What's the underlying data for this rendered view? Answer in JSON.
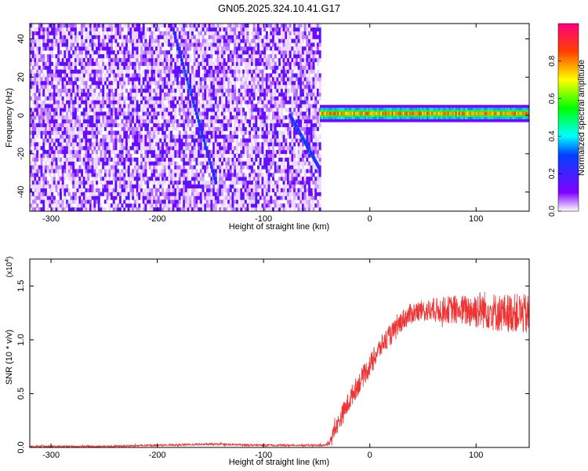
{
  "title": "GN05.2025.324.10.41.G17",
  "chart_data": [
    {
      "type": "heatmap",
      "xlabel": "Height of straight line (km)",
      "ylabel": "Frequency (Hz)",
      "xlim": [
        -320,
        150
      ],
      "ylim": [
        -50,
        48
      ],
      "x_ticks": [
        -300,
        -200,
        -100,
        0,
        100
      ],
      "y_ticks": [
        -40,
        -20,
        0,
        20,
        40
      ],
      "colorbar": {
        "label": "Normalized spectral amplitude",
        "range": [
          0,
          1
        ],
        "ticks": [
          0.0,
          0.2,
          0.4,
          0.6,
          0.8
        ],
        "tick_labels": [
          "0.0",
          "0.2",
          "0.4",
          "0.6",
          "0.8"
        ]
      },
      "features": {
        "noise_region_x": [
          -320,
          -47
        ],
        "tone_region_x": [
          -47,
          150
        ],
        "tone_frequency_hz": 1,
        "tone_peak_amplitude": 0.85,
        "diagonal_track_1": {
          "x": [
            -185,
            -145
          ],
          "y": [
            45,
            -35
          ],
          "amplitude": 0.3
        },
        "diagonal_track_2": {
          "x": [
            -75,
            -48
          ],
          "y": [
            0,
            -27
          ],
          "amplitude": 0.3
        }
      }
    },
    {
      "type": "line",
      "xlabel": "Height of straight line (km)",
      "ylabel": "SNR (10 * v/v)",
      "scale_label": "(x10",
      "scale_exponent": "4",
      "scale_suffix": ")",
      "xlim": [
        -320,
        150
      ],
      "ylim": [
        0,
        1.75
      ],
      "x_ticks": [
        -300,
        -200,
        -100,
        0,
        100
      ],
      "y_ticks": [
        0.0,
        0.5,
        1.0,
        1.5
      ],
      "y_tick_labels": [
        "0.0",
        "0.5",
        "1.0",
        "1.5"
      ],
      "series": [
        {
          "color": "#ee3333",
          "x": [
            -320,
            -250,
            -200,
            -150,
            -100,
            -60,
            -42,
            -38,
            -35,
            -30,
            -25,
            -20,
            -15,
            -10,
            -5,
            0,
            5,
            10,
            15,
            20,
            25,
            30,
            40,
            50,
            60,
            70,
            80,
            90,
            100,
            110,
            120,
            130,
            140,
            150
          ],
          "y": [
            0.01,
            0.01,
            0.02,
            0.03,
            0.02,
            0.02,
            0.02,
            0.05,
            0.12,
            0.22,
            0.32,
            0.42,
            0.52,
            0.6,
            0.68,
            0.76,
            0.85,
            0.93,
            1.0,
            1.05,
            1.1,
            1.18,
            1.25,
            1.27,
            1.27,
            1.28,
            1.28,
            1.27,
            1.28,
            1.28,
            1.25,
            1.25,
            1.25,
            1.22
          ],
          "noise_amplitude": [
            0.008,
            0.008,
            0.008,
            0.01,
            0.01,
            0.008,
            0.01,
            0.03,
            0.06,
            0.08,
            0.1,
            0.1,
            0.1,
            0.1,
            0.1,
            0.1,
            0.1,
            0.1,
            0.1,
            0.1,
            0.1,
            0.1,
            0.1,
            0.1,
            0.12,
            0.12,
            0.14,
            0.15,
            0.18,
            0.18,
            0.18,
            0.18,
            0.18,
            0.2
          ]
        }
      ]
    }
  ]
}
